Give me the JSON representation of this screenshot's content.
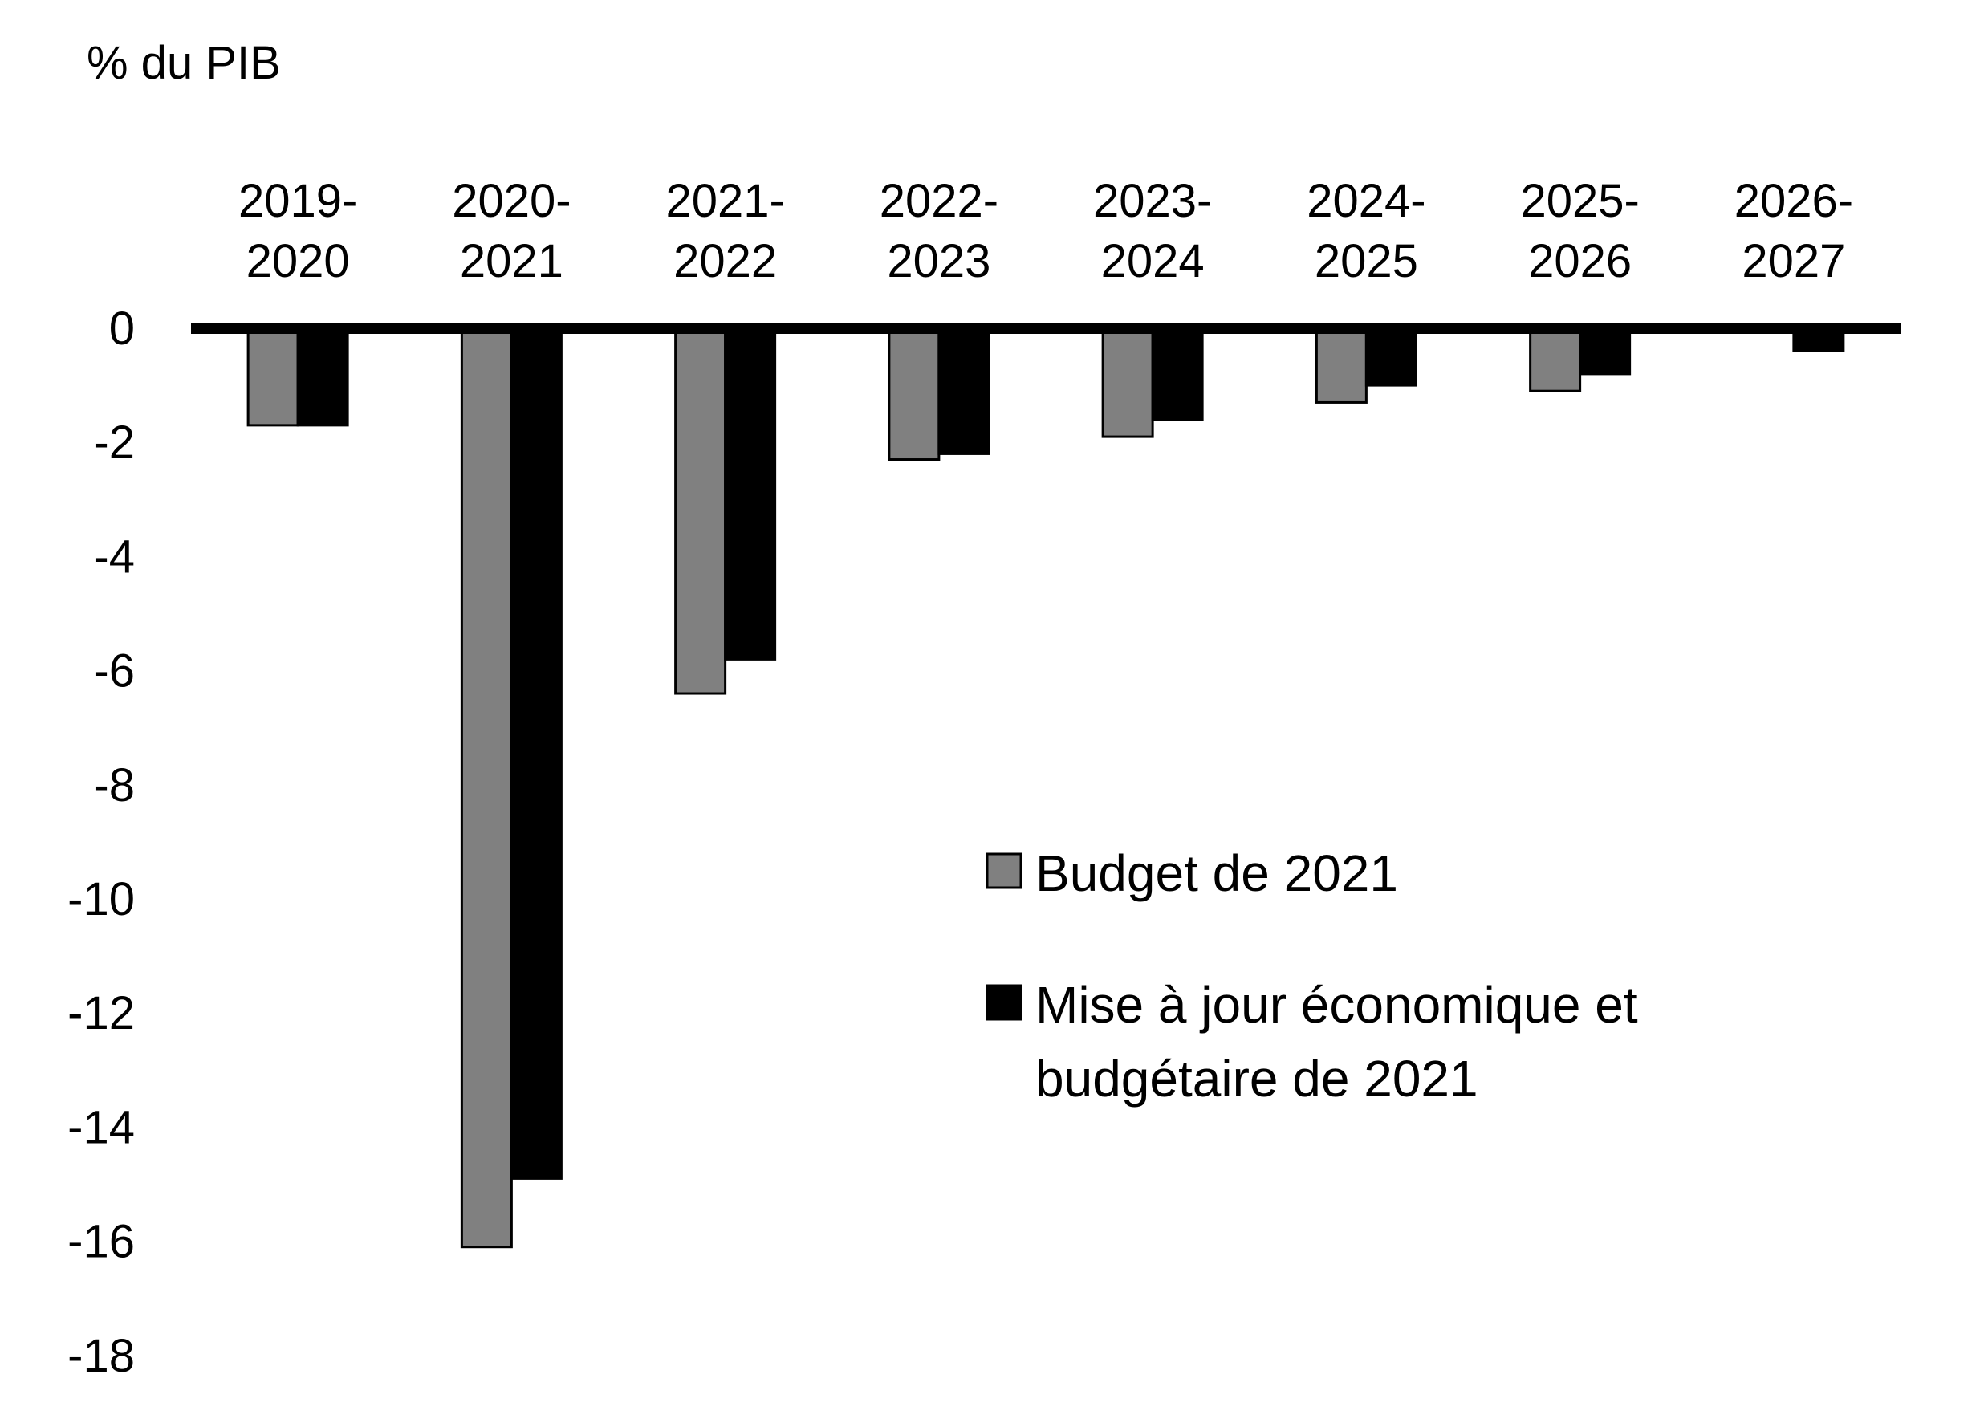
{
  "chart_data": {
    "type": "bar",
    "ylabel": "% du PIB",
    "xlabel": "",
    "title": "",
    "ylim": [
      -18,
      0
    ],
    "yticks": [
      0,
      -2,
      -4,
      -6,
      -8,
      -10,
      -12,
      -14,
      -16,
      -18
    ],
    "categories": [
      [
        "2019-",
        "2020"
      ],
      [
        "2020-",
        "2021"
      ],
      [
        "2021-",
        "2022"
      ],
      [
        "2022-",
        "2023"
      ],
      [
        "2023-",
        "2024"
      ],
      [
        "2024-",
        "2025"
      ],
      [
        "2025-",
        "2026"
      ],
      [
        "2026-",
        "2027"
      ]
    ],
    "series": [
      {
        "name": "Budget de 2021",
        "name_lines": [
          "Budget de 2021"
        ],
        "color": "#808080",
        "values": [
          -1.7,
          -16.1,
          -6.4,
          -2.3,
          -1.9,
          -1.3,
          -1.1,
          null
        ]
      },
      {
        "name": "Mise à jour économique et budgétaire de 2021",
        "name_lines": [
          "Mise à jour économique et",
          "budgétaire de 2021"
        ],
        "color": "#000000",
        "values": [
          -1.7,
          -14.9,
          -5.8,
          -2.2,
          -1.6,
          -1.0,
          -0.8,
          -0.4
        ]
      }
    ],
    "grid": false,
    "legend_position": "center-right"
  }
}
